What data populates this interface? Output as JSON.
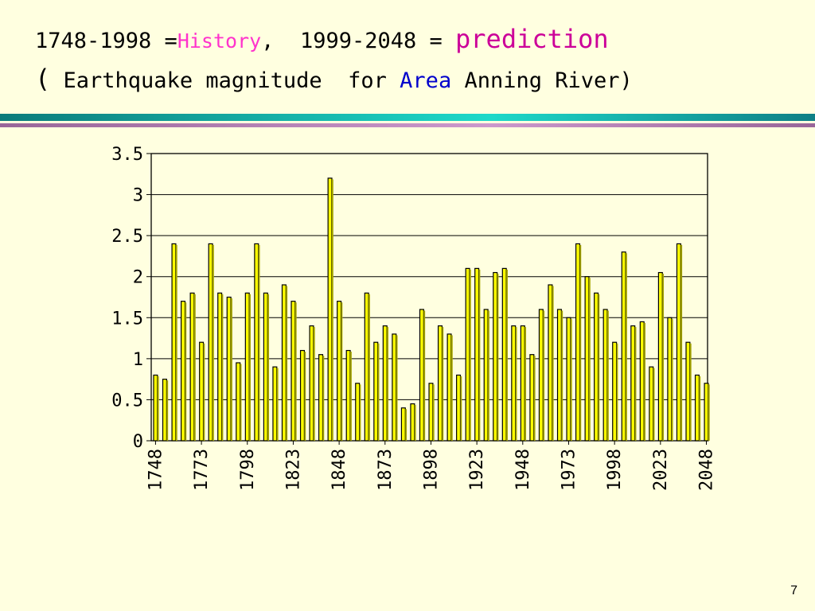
{
  "title": {
    "line1_part1": "1748-1998 =",
    "line1_history": "History",
    "line1_part2": ",  1999-2048 = ",
    "line1_prediction": "prediction",
    "line2_open": "(",
    "line2_part1": " Earthquake magnitude  for ",
    "line2_area": "Area",
    "line2_part2": " Anning River)"
  },
  "page_number": "7",
  "colors": {
    "background": "#ffffe0",
    "bar_fill": "#ffff00",
    "bar_side": "#a6a600",
    "history_text": "#ff33cc",
    "prediction_text": "#cc0099",
    "area_text": "#0000cc",
    "band_teal": "#1dd9c9",
    "band_mauve": "#cc99cc"
  },
  "chart_data": {
    "type": "bar",
    "title": "",
    "xlabel": "",
    "ylabel": "",
    "ylim": [
      0,
      3.5
    ],
    "yticks": [
      "0",
      "0.5",
      "1",
      "1.5",
      "2",
      "2.5",
      "3",
      "3.5"
    ],
    "xtick_labels": [
      "1748",
      "1773",
      "1798",
      "1823",
      "1848",
      "1873",
      "1898",
      "1923",
      "1948",
      "1973",
      "1998",
      "2023",
      "2048"
    ],
    "grid": "horizontal",
    "values": [
      0.8,
      0.75,
      2.4,
      1.7,
      1.8,
      1.2,
      2.4,
      1.8,
      1.75,
      0.95,
      1.8,
      2.4,
      1.8,
      0.9,
      1.9,
      1.7,
      1.1,
      1.4,
      1.05,
      3.2,
      1.7,
      1.1,
      0.7,
      1.8,
      1.2,
      1.4,
      1.3,
      0.4,
      0.45,
      1.6,
      0.7,
      1.4,
      1.3,
      0.8,
      2.1,
      2.1,
      1.6,
      2.05,
      2.1,
      1.4,
      1.4,
      1.05,
      1.6,
      1.9,
      1.6,
      1.5,
      2.4,
      2.0,
      1.8,
      1.6,
      1.2,
      2.3,
      1.4,
      1.45,
      0.9,
      2.05,
      1.5,
      2.4,
      1.2,
      0.8,
      0.7
    ]
  }
}
